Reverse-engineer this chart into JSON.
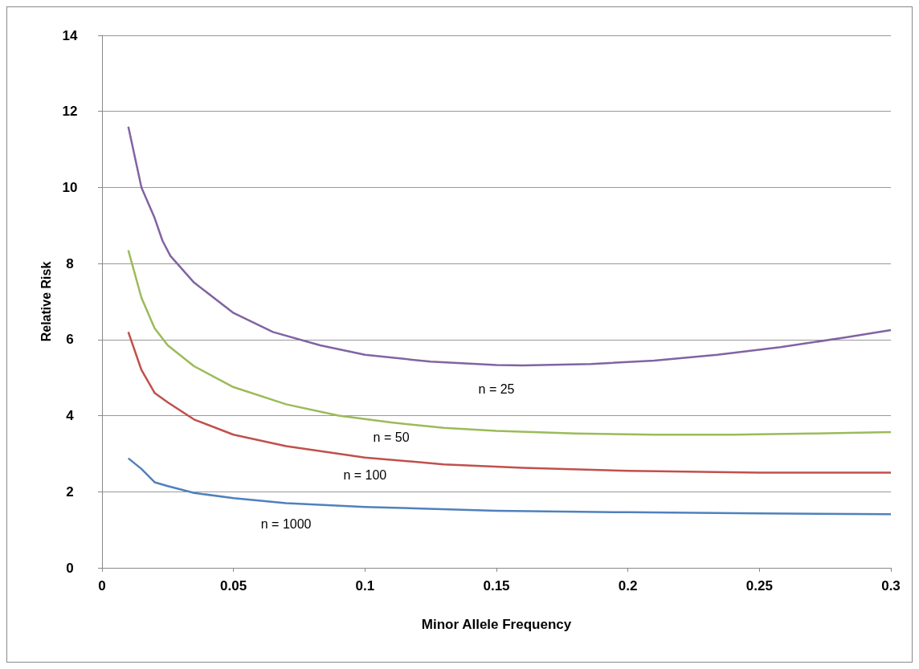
{
  "chart_data": {
    "type": "line",
    "xlabel": "Minor Allele Frequency",
    "ylabel": "Relative Risk",
    "xlim": [
      0,
      0.3
    ],
    "xticks": [
      0,
      0.05,
      0.1,
      0.15,
      0.2,
      0.25,
      0.3
    ],
    "ylim": [
      0,
      14
    ],
    "yticks": [
      0,
      2,
      4,
      6,
      8,
      10,
      12,
      14
    ],
    "grid": "y",
    "legend": false,
    "marker": "none",
    "line_style": "solid",
    "series": [
      {
        "name": "n = 25",
        "color": "#8064a2",
        "x": [
          0.01,
          0.015,
          0.02,
          0.023,
          0.026,
          0.035,
          0.05,
          0.065,
          0.083,
          0.1,
          0.125,
          0.15,
          0.16,
          0.186,
          0.21,
          0.234,
          0.258,
          0.282,
          0.3
        ],
        "values": [
          11.6,
          10.0,
          9.2,
          8.6,
          8.2,
          7.5,
          6.7,
          6.2,
          5.85,
          5.6,
          5.42,
          5.33,
          5.32,
          5.36,
          5.45,
          5.6,
          5.8,
          6.05,
          6.25
        ]
      },
      {
        "name": "n = 50",
        "color": "#9bbb59",
        "x": [
          0.01,
          0.015,
          0.02,
          0.025,
          0.035,
          0.05,
          0.07,
          0.09,
          0.11,
          0.13,
          0.15,
          0.18,
          0.21,
          0.24,
          0.27,
          0.3
        ],
        "values": [
          8.35,
          7.1,
          6.3,
          5.85,
          5.3,
          4.75,
          4.3,
          4.0,
          3.82,
          3.68,
          3.6,
          3.53,
          3.5,
          3.5,
          3.53,
          3.57
        ]
      },
      {
        "name": "n = 100",
        "color": "#c0504d",
        "x": [
          0.01,
          0.015,
          0.02,
          0.025,
          0.035,
          0.05,
          0.07,
          0.1,
          0.13,
          0.16,
          0.2,
          0.25,
          0.3
        ],
        "values": [
          6.2,
          5.2,
          4.6,
          4.35,
          3.9,
          3.5,
          3.2,
          2.9,
          2.72,
          2.63,
          2.55,
          2.5,
          2.5
        ]
      },
      {
        "name": "n = 1000",
        "color": "#4f81bd",
        "x": [
          0.01,
          0.015,
          0.02,
          0.025,
          0.035,
          0.05,
          0.07,
          0.1,
          0.15,
          0.2,
          0.25,
          0.3
        ],
        "values": [
          2.88,
          2.6,
          2.25,
          2.15,
          1.97,
          1.83,
          1.7,
          1.6,
          1.5,
          1.46,
          1.43,
          1.41
        ]
      }
    ]
  }
}
